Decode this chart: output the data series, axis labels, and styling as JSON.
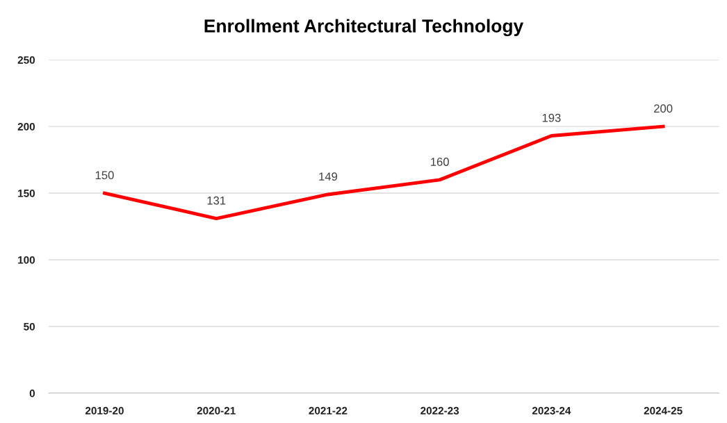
{
  "chart_data": {
    "type": "line",
    "title": "Enrollment Architectural Technology",
    "categories": [
      "2019-20",
      "2020-21",
      "2021-22",
      "2022-23",
      "2023-24",
      "2024-25"
    ],
    "series": [
      {
        "color": "#ff0000",
        "values": [
          150,
          131,
          149,
          160,
          193,
          200
        ]
      }
    ],
    "ylim": [
      0,
      250
    ],
    "yticks": [
      0,
      50,
      100,
      150,
      200,
      250
    ],
    "grid": "y",
    "data_labels": true,
    "marker": "none",
    "line_style": "solid",
    "legend": false
  }
}
